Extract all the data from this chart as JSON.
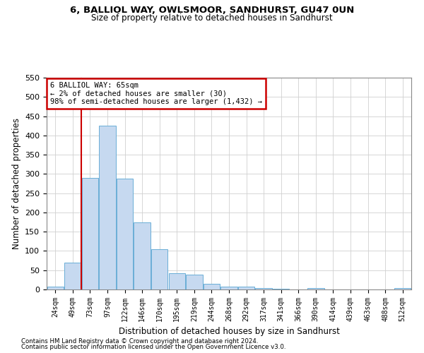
{
  "title1": "6, BALLIOL WAY, OWLSMOOR, SANDHURST, GU47 0UN",
  "title2": "Size of property relative to detached houses in Sandhurst",
  "xlabel": "Distribution of detached houses by size in Sandhurst",
  "ylabel": "Number of detached properties",
  "bin_labels": [
    "24sqm",
    "49sqm",
    "73sqm",
    "97sqm",
    "122sqm",
    "146sqm",
    "170sqm",
    "195sqm",
    "219sqm",
    "244sqm",
    "268sqm",
    "292sqm",
    "317sqm",
    "341sqm",
    "366sqm",
    "390sqm",
    "414sqm",
    "439sqm",
    "463sqm",
    "488sqm",
    "512sqm"
  ],
  "bar_values": [
    8,
    70,
    290,
    425,
    288,
    175,
    105,
    43,
    38,
    15,
    8,
    7,
    4,
    1,
    0,
    3,
    0,
    0,
    0,
    0,
    3
  ],
  "bar_color": "#c6d9f0",
  "bar_edge_color": "#6aaed6",
  "vline_color": "#cc0000",
  "vline_x": 1.5,
  "annotation_line1": "6 BALLIOL WAY: 65sqm",
  "annotation_line2": "← 2% of detached houses are smaller (30)",
  "annotation_line3": "98% of semi-detached houses are larger (1,432) →",
  "annotation_box_facecolor": "#ffffff",
  "annotation_box_edgecolor": "#cc0000",
  "ylim": [
    0,
    550
  ],
  "yticks": [
    0,
    50,
    100,
    150,
    200,
    250,
    300,
    350,
    400,
    450,
    500,
    550
  ],
  "grid_color": "#d0d0d0",
  "bg_color": "#ffffff",
  "footer1": "Contains HM Land Registry data © Crown copyright and database right 2024.",
  "footer2": "Contains public sector information licensed under the Open Government Licence v3.0."
}
